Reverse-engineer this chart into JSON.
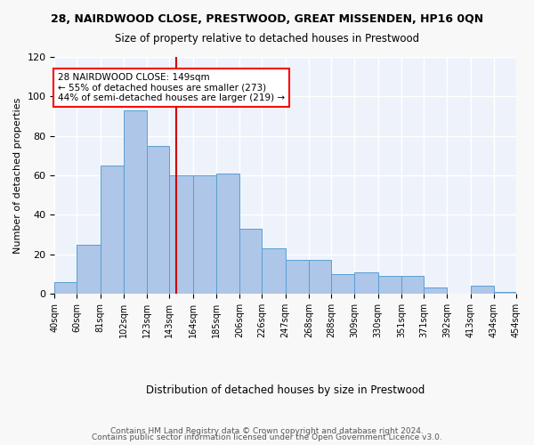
{
  "title": "28, NAIRDWOOD CLOSE, PRESTWOOD, GREAT MISSENDEN, HP16 0QN",
  "subtitle": "Size of property relative to detached houses in Prestwood",
  "xlabel": "Distribution of detached houses by size in Prestwood",
  "ylabel": "Number of detached properties",
  "bar_color": "#aec6e8",
  "bar_edge_color": "#5a9fd4",
  "background_color": "#eef3fb",
  "grid_color": "#ffffff",
  "annotation_text": "28 NAIRDWOOD CLOSE: 149sqm\n← 55% of detached houses are smaller (273)\n44% of semi-detached houses are larger (219) →",
  "vline_x": 149,
  "vline_color": "#cc0000",
  "bin_edges": [
    40,
    60,
    81,
    102,
    123,
    143,
    164,
    185,
    206,
    226,
    247,
    268,
    288,
    309,
    330,
    351,
    371,
    392,
    413,
    434,
    454
  ],
  "counts": [
    6,
    25,
    65,
    93,
    75,
    60,
    60,
    61,
    33,
    23,
    17,
    17,
    10,
    11,
    9,
    9,
    3,
    0,
    4,
    1
  ],
  "tick_labels": [
    "40sqm",
    "60sqm",
    "81sqm",
    "102sqm",
    "123sqm",
    "143sqm",
    "164sqm",
    "185sqm",
    "206sqm",
    "226sqm",
    "247sqm",
    "268sqm",
    "288sqm",
    "309sqm",
    "330sqm",
    "351sqm",
    "371sqm",
    "392sqm",
    "413sqm",
    "434sqm",
    "454sqm"
  ],
  "ylim": [
    0,
    120
  ],
  "yticks": [
    0,
    20,
    40,
    60,
    80,
    100,
    120
  ],
  "footer1": "Contains HM Land Registry data © Crown copyright and database right 2024.",
  "footer2": "Contains public sector information licensed under the Open Government Licence v3.0."
}
